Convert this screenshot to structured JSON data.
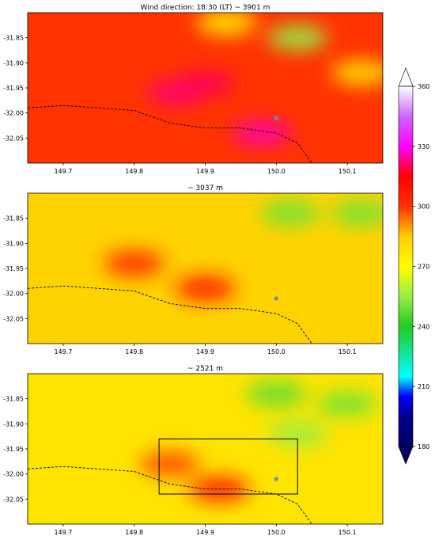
{
  "chart_data": [
    {
      "type": "heatmap",
      "title": "Wind direction: 18:30 (LT) ~  3901 m",
      "xlabel": "",
      "ylabel": "",
      "xlim": [
        149.65,
        150.15
      ],
      "ylim": [
        -32.1,
        -31.8
      ],
      "xticks": [
        "149.7",
        "149.8",
        "149.9",
        "150.0",
        "150.1"
      ],
      "yticks": [
        "-31.85",
        "-31.90",
        "-31.95",
        "-32.00",
        "-32.05"
      ],
      "typical_value": 300,
      "hotspots": [
        {
          "lon": 149.86,
          "lat": -31.96,
          "value": 322
        },
        {
          "lon": 149.9,
          "lat": -31.94,
          "value": 320
        },
        {
          "lon": 149.98,
          "lat": -32.04,
          "value": 325
        },
        {
          "lon": 150.03,
          "lat": -31.85,
          "value": 255
        },
        {
          "lon": 149.93,
          "lat": -31.82,
          "value": 275
        },
        {
          "lon": 150.12,
          "lat": -31.92,
          "value": 278
        }
      ],
      "boundary_line": {
        "lon": [
          149.65,
          149.7,
          149.75,
          149.8,
          149.85,
          149.9,
          149.95,
          150.0,
          150.03,
          150.05
        ],
        "lat": [
          -31.99,
          -31.985,
          -31.99,
          -31.995,
          -32.02,
          -32.03,
          -32.03,
          -32.04,
          -32.06,
          -32.1
        ]
      },
      "site": {
        "lon": 150.0,
        "lat": -32.01
      },
      "box": null
    },
    {
      "type": "heatmap",
      "title": "~  3037 m",
      "xlabel": "",
      "ylabel": "",
      "xlim": [
        149.65,
        150.15
      ],
      "ylim": [
        -32.1,
        -31.8
      ],
      "xticks": [
        "149.7",
        "149.8",
        "149.9",
        "150.0",
        "150.1"
      ],
      "yticks": [
        "-31.85",
        "-31.90",
        "-31.95",
        "-32.00",
        "-32.05"
      ],
      "typical_value": 283,
      "hotspots": [
        {
          "lon": 149.8,
          "lat": -31.94,
          "value": 305
        },
        {
          "lon": 149.9,
          "lat": -31.99,
          "value": 307
        },
        {
          "lon": 150.02,
          "lat": -31.84,
          "value": 250
        },
        {
          "lon": 150.12,
          "lat": -31.84,
          "value": 250
        }
      ],
      "boundary_line": {
        "lon": [
          149.65,
          149.7,
          149.75,
          149.8,
          149.85,
          149.9,
          149.95,
          150.0,
          150.03,
          150.05
        ],
        "lat": [
          -31.99,
          -31.985,
          -31.99,
          -31.995,
          -32.02,
          -32.03,
          -32.03,
          -32.04,
          -32.06,
          -32.1
        ]
      },
      "site": {
        "lon": 150.0,
        "lat": -32.01
      },
      "box": null
    },
    {
      "type": "heatmap",
      "title": "~  2521 m",
      "xlabel": "",
      "ylabel": "",
      "xlim": [
        149.65,
        150.15
      ],
      "ylim": [
        -32.1,
        -31.8
      ],
      "xticks": [
        "149.7",
        "149.8",
        "149.9",
        "150.0",
        "150.1"
      ],
      "yticks": [
        "-31.85",
        "-31.90",
        "-31.95",
        "-32.00",
        "-32.05"
      ],
      "typical_value": 278,
      "hotspots": [
        {
          "lon": 149.92,
          "lat": -32.03,
          "value": 308
        },
        {
          "lon": 149.85,
          "lat": -31.98,
          "value": 298
        },
        {
          "lon": 150.0,
          "lat": -31.84,
          "value": 248
        },
        {
          "lon": 150.1,
          "lat": -31.86,
          "value": 250
        },
        {
          "lon": 150.03,
          "lat": -31.92,
          "value": 255
        }
      ],
      "boundary_line": {
        "lon": [
          149.65,
          149.7,
          149.75,
          149.8,
          149.85,
          149.9,
          149.95,
          150.0,
          150.03,
          150.05
        ],
        "lat": [
          -31.99,
          -31.985,
          -31.99,
          -31.995,
          -32.02,
          -32.03,
          -32.03,
          -32.04,
          -32.06,
          -32.1
        ]
      },
      "site": {
        "lon": 150.0,
        "lat": -32.01
      },
      "box": {
        "lon": [
          149.835,
          150.03
        ],
        "lat": [
          -32.04,
          -31.93
        ]
      }
    }
  ],
  "colorbar": {
    "min": 180,
    "max": 360,
    "ticks": [
      "180",
      "210",
      "240",
      "270",
      "300",
      "330",
      "360"
    ],
    "extend": "both"
  },
  "colors": {
    "c180": "#000066",
    "c195": "#00008b",
    "c205": "#0000ff",
    "c215": "#00ffff",
    "c240": "#22cc22",
    "c255": "#99ee44",
    "c270": "#ffff00",
    "c285": "#ffcc00",
    "c300": "#ff3300",
    "c315": "#ff0000",
    "c330": "#ff00ff",
    "c345": "#cc66ff",
    "c360": "#ffffff",
    "line": "#000000",
    "site": "#6f8fa8"
  }
}
